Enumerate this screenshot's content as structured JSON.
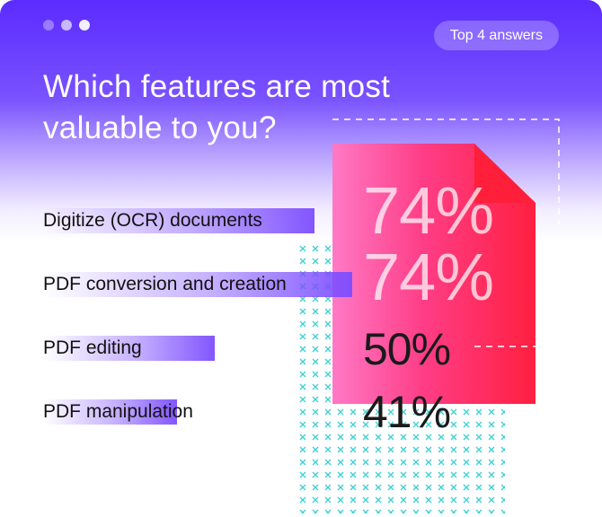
{
  "header": {
    "badge": "Top 4 answers",
    "title": "Which features are most valuable to you?"
  },
  "colors": {
    "accent": "#5b2bff",
    "bar": "#7c4dff",
    "document": "#ff2d55",
    "pattern": "#3fd0d4"
  },
  "icons": [
    "window-dots-icon",
    "document-icon",
    "cross-pattern-icon"
  ],
  "chart_data": {
    "type": "bar",
    "orientation": "horizontal",
    "title": "Which features are most valuable to you?",
    "categories": [
      "Digitize (OCR) documents",
      "PDF conversion and creation",
      "PDF editing",
      "PDF manipulation"
    ],
    "values": [
      74,
      74,
      50,
      41
    ],
    "labels": [
      "74%",
      "74%",
      "50%",
      "41%"
    ],
    "unit": "%",
    "xlim": [
      0,
      100
    ],
    "grid": false,
    "legend": "none"
  }
}
